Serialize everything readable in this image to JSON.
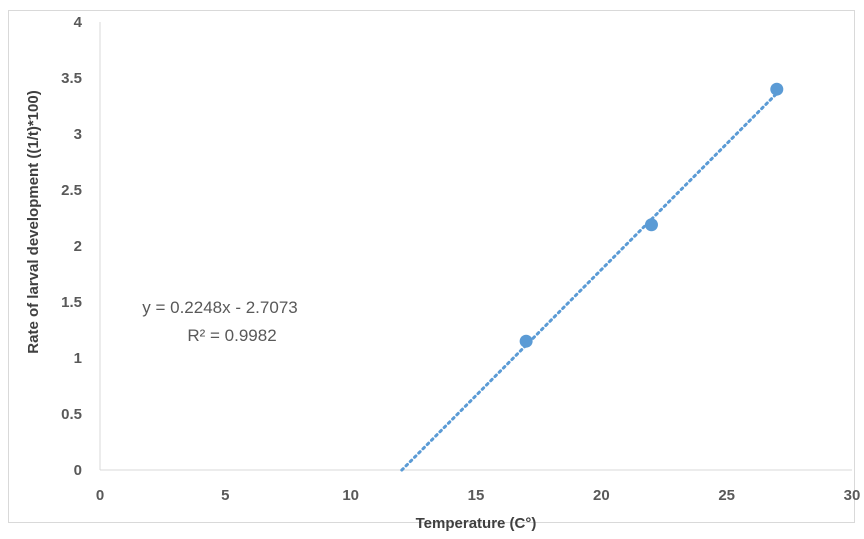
{
  "chart_data": {
    "type": "scatter",
    "title": "",
    "xlabel": "Temperature (C°)",
    "ylabel": "Rate of larval development ((1/t)*100)",
    "xlim": [
      0,
      30
    ],
    "ylim": [
      0,
      4
    ],
    "x_ticks": [
      "0",
      "5",
      "10",
      "15",
      "20",
      "25",
      "30"
    ],
    "y_ticks": [
      "0",
      "0.5",
      "1",
      "1.5",
      "2",
      "2.5",
      "3",
      "3.5",
      "4"
    ],
    "grid": false,
    "legend": "none",
    "series": [
      {
        "x": [
          17,
          22,
          27
        ],
        "y": [
          1.15,
          2.19,
          3.4
        ],
        "color": "#5b9bd5"
      }
    ],
    "trendline": {
      "type": "linear",
      "slope": 0.2248,
      "intercept": -2.7073,
      "x_range": [
        12.04,
        27
      ],
      "color": "#5b9bd5",
      "style": "dotted",
      "equation_label": "y = 0.2248x - 2.7073",
      "r2_label": "R² = 0.9982"
    }
  }
}
